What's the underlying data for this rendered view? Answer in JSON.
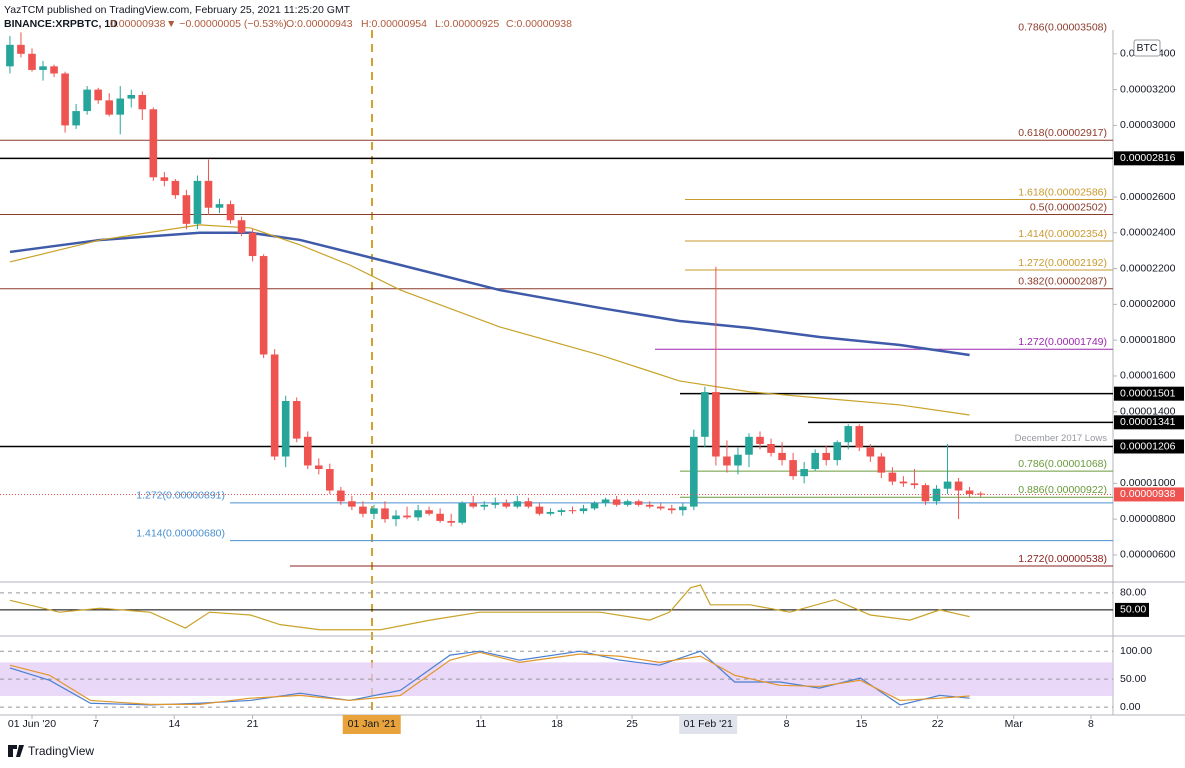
{
  "header": {
    "author_line": "YazTCM published on TradingView.com, February 25, 2021 11:25:20 GMT",
    "symbol": "BINANCE:XRPBTC, 1D",
    "last": "0.00000938",
    "change": "▼ −0.00000005 (−0.53%)",
    "ohlc": [
      "O:0.00000943",
      "H:0.00000954",
      "L:0.00000925",
      "C:0.00000938"
    ]
  },
  "footer": {
    "brand": "TradingView"
  },
  "chart_data": [
    {
      "type": "candlestick",
      "currency": "BTC",
      "up_color": "#26a69a",
      "down_color": "#ef5350",
      "xlim": [
        -0.9,
        100
      ],
      "ylim": [
        4.6e-06,
        3.533e-05
      ],
      "xticks": [
        {
          "value": 2,
          "label": "01 Jun '20"
        },
        {
          "value": 7.8,
          "label": "7"
        },
        {
          "value": 14.9,
          "label": "14"
        },
        {
          "value": 22,
          "label": "21"
        },
        {
          "value": 32.8,
          "label": "01 Jan '21"
        },
        {
          "value": 42.7,
          "label": "11"
        },
        {
          "value": 49.6,
          "label": "18"
        },
        {
          "value": 56.4,
          "label": "25"
        },
        {
          "value": 63.3,
          "label": "01 Feb '21"
        },
        {
          "value": 70.4,
          "label": "8"
        },
        {
          "value": 77.2,
          "label": "15"
        },
        {
          "value": 84.1,
          "label": "22"
        },
        {
          "value": 91,
          "label": "Mar"
        },
        {
          "value": 98,
          "label": "8"
        }
      ],
      "yticks": [
        {
          "value": 3.4e-05,
          "label": "0.00003400"
        },
        {
          "value": 3.2e-05,
          "label": "0.00003200"
        },
        {
          "value": 3e-05,
          "label": "0.00003000"
        },
        {
          "value": 2.6e-05,
          "label": "0.00002600"
        },
        {
          "value": 2.4e-05,
          "label": "0.00002400"
        },
        {
          "value": 2.2e-05,
          "label": "0.00002200"
        },
        {
          "value": 2e-05,
          "label": "0.00002000"
        },
        {
          "value": 1.8e-05,
          "label": "0.00001800"
        },
        {
          "value": 1.6e-05,
          "label": "0.00001600"
        },
        {
          "value": 1.4e-05,
          "label": "0.00001400"
        },
        {
          "value": 1e-05,
          "label": "0.00001000"
        },
        {
          "value": 8e-06,
          "label": "0.00000800"
        },
        {
          "value": 6e-06,
          "label": "0.00000600"
        }
      ],
      "x": [
        0,
        1,
        2,
        3,
        4,
        5,
        6,
        7,
        8,
        9,
        10,
        11,
        12,
        13,
        14,
        15,
        16,
        17,
        18,
        19,
        20,
        21,
        22,
        23,
        24,
        25,
        26,
        27,
        28,
        29,
        30,
        31,
        32,
        33,
        34,
        35,
        36,
        37,
        38,
        39,
        40,
        41,
        42,
        43,
        44,
        45,
        46,
        47,
        48,
        49,
        50,
        51,
        52,
        53,
        54,
        55,
        56,
        57,
        58,
        59,
        60,
        61,
        62,
        63,
        64,
        65,
        66,
        67,
        68,
        69,
        70,
        71,
        72,
        73,
        74,
        75,
        76,
        77,
        78,
        79,
        80,
        81,
        82,
        83,
        84,
        85,
        86,
        87,
        88
      ],
      "open": [
        3.33e-05,
        3.45e-05,
        3.4e-05,
        3.31e-05,
        3.33e-05,
        3.29e-05,
        3e-05,
        3.08e-05,
        3.2e-05,
        3.14e-05,
        3.06e-05,
        3.15e-05,
        3.17e-05,
        3.09e-05,
        2.71e-05,
        2.69e-05,
        2.61e-05,
        2.45e-05,
        2.69e-05,
        2.54e-05,
        2.56e-05,
        2.47e-05,
        2.4e-05,
        2.27e-05,
        1.72e-05,
        1.15e-05,
        1.46e-05,
        1.26e-05,
        1.1e-05,
        1.08e-05,
        9.6e-06,
        9e-06,
        8.7e-06,
        8.3e-06,
        8.6e-06,
        8e-06,
        8.2e-06,
        8.1e-06,
        8.5e-06,
        8.3e-06,
        7.9e-06,
        7.8e-06,
        8.9e-06,
        8.7e-06,
        8.8e-06,
        8.9e-06,
        8.7e-06,
        9e-06,
        8.7e-06,
        8.3e-06,
        8.4e-06,
        8.5e-06,
        8.45e-06,
        8.6e-06,
        8.9e-06,
        9.1e-06,
        8.8e-06,
        9e-06,
        8.8e-06,
        8.7e-06,
        8.6e-06,
        8.5e-06,
        8.7e-06,
        1.26e-05,
        1.51e-05,
        1.15e-05,
        1.1e-05,
        1.16e-05,
        1.26e-05,
        1.22e-05,
        1.17e-05,
        1.13e-05,
        1.04e-05,
        1.08e-05,
        1.17e-05,
        1.13e-05,
        1.23e-05,
        1.32e-05,
        1.2e-05,
        1.15e-05,
        1.06e-05,
        1.01e-05,
        1e-05,
        9.9e-06,
        9e-06,
        9.7e-06,
        1.01e-05,
        9.6e-06,
        9.43e-06
      ],
      "high": [
        3.5e-05,
        3.52e-05,
        3.43e-05,
        3.36e-05,
        3.34e-05,
        3.3e-05,
        3.12e-05,
        3.22e-05,
        3.21e-05,
        3.18e-05,
        3.22e-05,
        3.2e-05,
        3.19e-05,
        3.1e-05,
        2.74e-05,
        2.7e-05,
        2.64e-05,
        2.72e-05,
        2.81e-05,
        2.59e-05,
        2.58e-05,
        2.49e-05,
        2.42e-05,
        2.28e-05,
        1.75e-05,
        1.49e-05,
        1.48e-05,
        1.29e-05,
        1.14e-05,
        1.11e-05,
        9.8e-06,
        9.3e-06,
        9e-06,
        8.8e-06,
        9e-06,
        8.5e-06,
        8.7e-06,
        8.8e-06,
        8.7e-06,
        8.6e-06,
        8.3e-06,
        9e-06,
        9.3e-06,
        9e-06,
        9.2e-06,
        9.1e-06,
        9.3e-06,
        9.2e-06,
        8.9e-06,
        8.6e-06,
        8.6e-06,
        8.7e-06,
        8.8e-06,
        9e-06,
        9.2e-06,
        9.3e-06,
        9.1e-06,
        9.1e-06,
        9e-06,
        8.9e-06,
        8.8e-06,
        8.9e-06,
        1.3e-05,
        1.54e-05,
        2.21e-05,
        1.24e-05,
        1.2e-05,
        1.28e-05,
        1.29e-05,
        1.25e-05,
        1.23e-05,
        1.17e-05,
        1.12e-05,
        1.19e-05,
        1.21e-05,
        1.24e-05,
        1.33e-05,
        1.33e-05,
        1.22e-05,
        1.17e-05,
        1.09e-05,
        1.04e-05,
        1.08e-05,
        1e-05,
        9.9e-06,
        1.22e-05,
        1.03e-05,
        9.8e-06,
        9.54e-06
      ],
      "low": [
        3.29e-05,
        3.38e-05,
        3.3e-05,
        3.25e-05,
        3.27e-05,
        2.96e-05,
        2.98e-05,
        3.06e-05,
        3.12e-05,
        3.05e-05,
        2.95e-05,
        3.1e-05,
        3.03e-05,
        2.69e-05,
        2.66e-05,
        2.59e-05,
        2.42e-05,
        2.42e-05,
        2.5e-05,
        2.51e-05,
        2.45e-05,
        2.38e-05,
        2.24e-05,
        1.7e-05,
        1.13e-05,
        1.09e-05,
        1.23e-05,
        1.08e-05,
        1.05e-05,
        9.4e-06,
        8.8e-06,
        8.5e-06,
        8.1e-06,
        8e-06,
        7.8e-06,
        7.6e-06,
        8e-06,
        7.9e-06,
        8.2e-06,
        7.8e-06,
        7.6e-06,
        7.7e-06,
        8.6e-06,
        8.5e-06,
        8.6e-06,
        8.6e-06,
        8.6e-06,
        8.6e-06,
        8.2e-06,
        8.2e-06,
        8.2e-06,
        8.3e-06,
        8.3e-06,
        8.5e-06,
        8.7e-06,
        8.7e-06,
        8.7e-06,
        8.7e-06,
        8.6e-06,
        8.5e-06,
        8.3e-06,
        8.2e-06,
        8.5e-06,
        1.2e-05,
        1.1e-05,
        1.06e-05,
        1.05e-05,
        1.09e-05,
        1.19e-05,
        1.15e-05,
        1.1e-05,
        1.02e-05,
        1e-05,
        1.07e-05,
        1.1e-05,
        1.1e-05,
        1.19e-05,
        1.18e-05,
        1.12e-05,
        1.03e-05,
        9.9e-06,
        9.8e-06,
        9.7e-06,
        8.8e-06,
        8.8e-06,
        9.4e-06,
        8e-06,
        9.2e-06,
        9.25e-06
      ],
      "close": [
        3.45e-05,
        3.4e-05,
        3.31e-05,
        3.33e-05,
        3.29e-05,
        3e-05,
        3.08e-05,
        3.2e-05,
        3.14e-05,
        3.06e-05,
        3.15e-05,
        3.17e-05,
        3.09e-05,
        2.71e-05,
        2.69e-05,
        2.61e-05,
        2.45e-05,
        2.69e-05,
        2.54e-05,
        2.56e-05,
        2.47e-05,
        2.4e-05,
        2.27e-05,
        1.72e-05,
        1.15e-05,
        1.46e-05,
        1.25e-05,
        1.1e-05,
        1.08e-05,
        9.6e-06,
        9e-06,
        8.7e-06,
        8.3e-06,
        8.6e-06,
        8e-06,
        8.2e-06,
        8.1e-06,
        8.5e-06,
        8.3e-06,
        7.9e-06,
        7.8e-06,
        8.9e-06,
        8.7e-06,
        8.8e-06,
        8.9e-06,
        8.7e-06,
        9e-06,
        8.7e-06,
        8.3e-06,
        8.4e-06,
        8.5e-06,
        8.45e-06,
        8.6e-06,
        8.9e-06,
        9.1e-06,
        8.8e-06,
        9e-06,
        8.8e-06,
        8.7e-06,
        8.6e-06,
        8.5e-06,
        8.7e-06,
        1.26e-05,
        1.51e-05,
        1.15e-05,
        1.1e-05,
        1.16e-05,
        1.26e-05,
        1.22e-05,
        1.17e-05,
        1.13e-05,
        1.04e-05,
        1.08e-05,
        1.17e-05,
        1.13e-05,
        1.23e-05,
        1.32e-05,
        1.2e-05,
        1.15e-05,
        1.06e-05,
        1.01e-05,
        1e-05,
        9.9e-06,
        9e-06,
        9.7e-06,
        1.01e-05,
        9.6e-06,
        9.4e-06,
        9.38e-06
      ],
      "series": [
        {
          "color": "#3f5aa8",
          "x": [
            0,
            8.2,
            17.2,
            21.8,
            26.3,
            35.4,
            44.4,
            53.5,
            60.7,
            67.1,
            73.4,
            80.7,
            87
          ],
          "values": [
            2.293e-05,
            2.36e-05,
            2.4e-05,
            2.4e-05,
            2.36e-05,
            2.22e-05,
            2.08e-05,
            1.98e-05,
            1.907e-05,
            1.868e-05,
            1.818e-05,
            1.773e-05,
            1.717e-05
          ]
        },
        {
          "color": "#c9a227",
          "x": [
            0,
            8.2,
            17.2,
            21.8,
            26.3,
            30.8,
            35.4,
            44.4,
            53.5,
            60.7,
            67.1,
            73.4,
            80.7,
            87
          ],
          "values": [
            2.237e-05,
            2.36e-05,
            2.444e-05,
            2.427e-05,
            2.332e-05,
            2.22e-05,
            2.08e-05,
            1.874e-05,
            1.717e-05,
            1.572e-05,
            1.511e-05,
            1.477e-05,
            1.438e-05,
            1.382e-05
          ]
        }
      ],
      "levels": [
        {
          "label": "0.786(0.00003508)",
          "value": 3.508e-05,
          "color": "#8b3a2b"
        },
        {
          "label": "0.618(0.00002917)",
          "value": 2.917e-05,
          "color": "#8b3a2b"
        },
        {
          "label": "0.00002816",
          "value": 2.816e-05,
          "color": "#000000",
          "style": "box"
        },
        {
          "label": "1.618(0.00002586)",
          "value": 2.586e-05,
          "color": "#c99a2e"
        },
        {
          "label": "0.5(0.00002502)",
          "value": 2.502e-05,
          "color": "#8b3a2b"
        },
        {
          "label": "1.414(0.00002354)",
          "value": 2.354e-05,
          "color": "#c99a2e"
        },
        {
          "label": "1.272(0.00002192)",
          "value": 2.192e-05,
          "color": "#c99a2e"
        },
        {
          "label": "0.382(0.00002087)",
          "value": 2.087e-05,
          "color": "#8b3a2b"
        },
        {
          "label": "1.272(0.00001749)",
          "value": 1.749e-05,
          "color": "#9c27b0"
        },
        {
          "label": "0.00001501",
          "value": 1.501e-05,
          "color": "#000000",
          "style": "box"
        },
        {
          "label": "0.00001341",
          "value": 1.341e-05,
          "color": "#000000",
          "style": "box"
        },
        {
          "label": "0.00001206",
          "value": 1.206e-05,
          "color": "#000000",
          "style": "box",
          "note": "December 2017 Lows"
        },
        {
          "label": "0.786(0.00001068)",
          "value": 1.068e-05,
          "color": "#6a9a3a"
        },
        {
          "label": "0.886(0.00000922)",
          "value": 9.22e-06,
          "color": "#6a9a3a"
        },
        {
          "label": "1.272(0.00000891)",
          "value": 8.91e-06,
          "color": "#4a8fd0"
        },
        {
          "label": "1.414(0.00000680)",
          "value": 6.8e-06,
          "color": "#4a8fd0"
        },
        {
          "label": "1.272(0.00000538)",
          "value": 5.38e-06,
          "color": "#8b2020"
        }
      ],
      "last_price": {
        "label": "0.00000938",
        "value": 9.38e-06,
        "color": "#ef5350"
      }
    },
    {
      "type": "line",
      "xlim": [
        -0.9,
        100
      ],
      "ylim": [
        11,
        94
      ],
      "yticks": [
        {
          "value": 80,
          "label": "80.00"
        },
        {
          "value": 50,
          "label": "50.00"
        }
      ],
      "series": [
        {
          "color": "#c9a227",
          "x": [
            0,
            4.5,
            8.2,
            12.7,
            15.9,
            18.1,
            21.8,
            24.5,
            28.1,
            33.6,
            38.1,
            42.6,
            48.1,
            53.5,
            58,
            59.8,
            61.7,
            62.6,
            63.5,
            67.1,
            70.7,
            74.8,
            78,
            81.6,
            84.3,
            87
          ],
          "values": [
            67,
            46,
            53,
            46,
            18,
            46,
            41,
            24,
            15,
            15,
            32,
            46,
            46,
            46,
            32,
            46,
            89,
            94,
            59,
            59,
            46,
            68,
            41,
            32,
            50,
            38
          ]
        }
      ]
    },
    {
      "type": "line",
      "xlim": [
        -0.9,
        100
      ],
      "ylim": [
        -14,
        120
      ],
      "band": [
        20,
        80
      ],
      "yticks": [
        {
          "value": 100,
          "label": "100.00"
        },
        {
          "value": 50,
          "label": "50.00"
        },
        {
          "value": 0,
          "label": "0.00"
        }
      ],
      "series": [
        {
          "color": "#4a7fd0",
          "x": [
            0,
            3.6,
            7.3,
            12.7,
            17.2,
            21.8,
            26.3,
            30.8,
            35.4,
            39.9,
            42.6,
            46.2,
            51.7,
            55.3,
            58.9,
            62.6,
            65.7,
            69.8,
            73.4,
            77.1,
            80.7,
            84.3,
            87
          ],
          "values": [
            70,
            48,
            7,
            4,
            7,
            12,
            25,
            12,
            30,
            93,
            100,
            84,
            100,
            84,
            75,
            100,
            45,
            45,
            34,
            52,
            4,
            21,
            16
          ]
        },
        {
          "color": "#e0962d",
          "x": [
            0,
            3.6,
            7.3,
            12.7,
            17.2,
            21.8,
            26.3,
            30.8,
            35.4,
            39.9,
            42.6,
            46.2,
            51.7,
            55.3,
            58.9,
            62.6,
            65.7,
            69.8,
            73.4,
            77.1,
            80.7,
            84.3,
            87
          ],
          "values": [
            75,
            57,
            12,
            5,
            5,
            16,
            21,
            12,
            21,
            84,
            98,
            80,
            95,
            91,
            80,
            91,
            57,
            39,
            37,
            48,
            12,
            16,
            20
          ]
        }
      ]
    }
  ]
}
